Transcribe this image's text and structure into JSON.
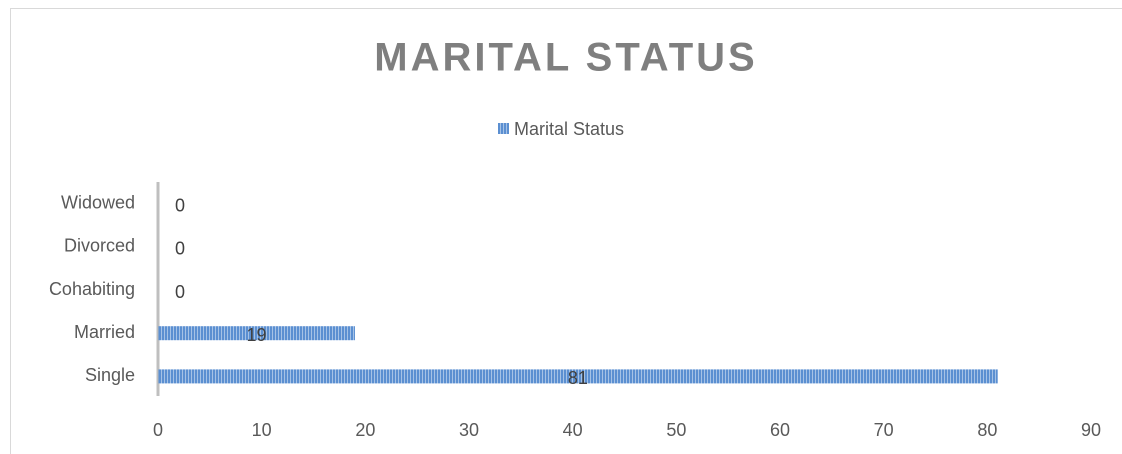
{
  "chart_data": {
    "type": "bar",
    "orientation": "horizontal",
    "title": "MARITAL STATUS",
    "categories": [
      "Single",
      "Married",
      "Cohabiting",
      "Divorced",
      "Widowed"
    ],
    "series": [
      {
        "name": "Marital Status",
        "color": "#5b8fd1",
        "values": [
          81,
          19,
          0,
          0,
          0
        ]
      }
    ],
    "xlim": [
      0,
      90
    ],
    "xticks": [
      0,
      10,
      20,
      30,
      40,
      50,
      60,
      70,
      80,
      90
    ],
    "legend": "top",
    "grid": false
  }
}
